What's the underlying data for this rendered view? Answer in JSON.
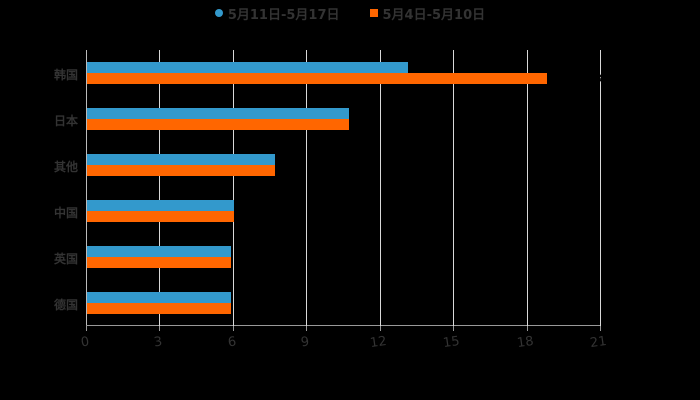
{
  "chart_data": {
    "type": "bar",
    "orientation": "horizontal",
    "title": "",
    "xlabel": "",
    "ylabel": "",
    "xlim": [
      0,
      21
    ],
    "x_ticks": [
      "0",
      "3",
      "6",
      "9",
      "12",
      "15",
      "18",
      "21"
    ],
    "categories": [
      "韩国",
      "日本",
      "其他",
      "中国",
      "英国",
      "德国"
    ],
    "series": [
      {
        "name": "5月11日-5月17日",
        "color": "#3399cc",
        "values": [
          13.1,
          10.7,
          7.7,
          6.0,
          5.9,
          5.9
        ]
      },
      {
        "name": "5月4日-5月10日",
        "color": "#ff6600",
        "values": [
          18.8,
          10.7,
          7.7,
          6.0,
          5.9,
          5.9
        ]
      }
    ],
    "legend_position": "top",
    "grid": "vertical",
    "background": "#000000"
  },
  "legend": {
    "items": [
      {
        "label": "5月11日-5月17日",
        "color": "#3399cc",
        "marker": "circle"
      },
      {
        "label": "5月4日-5月10日",
        "color": "#ff6600",
        "marker": "square"
      }
    ]
  }
}
